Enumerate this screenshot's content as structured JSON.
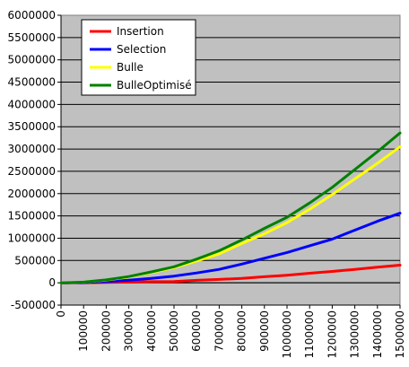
{
  "chart_data": {
    "type": "line",
    "x": [
      0,
      100000,
      200000,
      300000,
      400000,
      500000,
      600000,
      700000,
      800000,
      900000,
      1000000,
      1100000,
      1200000,
      1300000,
      1400000,
      1500000
    ],
    "x_tick_labels": [
      "0",
      "100000",
      "200000",
      "300000",
      "400000",
      "500000",
      "600000",
      "700000",
      "800000",
      "900000",
      "1000000",
      "1100000",
      "1200000",
      "1300000",
      "1400000",
      "1500000"
    ],
    "y_tick_labels": [
      "6000000",
      "5500000",
      "5000000",
      "4500000",
      "4000000",
      "3500000",
      "3000000",
      "2500000",
      "2000000",
      "1500000",
      "1000000",
      "500000",
      "0",
      "-500000"
    ],
    "ylim": [
      -500000,
      6000000
    ],
    "xlim": [
      0,
      1500000
    ],
    "grid": "horizontal",
    "legend_position": "top-left",
    "plot_background": "#c0c0c0",
    "series": [
      {
        "name": "Insertion",
        "color": "#ff0000",
        "values": [
          0,
          2000,
          8000,
          16000,
          25000,
          30000,
          55000,
          75000,
          100000,
          135000,
          170000,
          215000,
          255000,
          300000,
          350000,
          395000
        ]
      },
      {
        "name": "Selection",
        "color": "#0000ff",
        "values": [
          0,
          5000,
          25000,
          60000,
          100000,
          150000,
          220000,
          300000,
          420000,
          550000,
          680000,
          830000,
          980000,
          1180000,
          1380000,
          1560000
        ]
      },
      {
        "name": "Bulle",
        "color": "#ffff00",
        "values": [
          0,
          15000,
          60000,
          130000,
          230000,
          340000,
          490000,
          650000,
          880000,
          1100000,
          1350000,
          1650000,
          1980000,
          2330000,
          2680000,
          3050000
        ]
      },
      {
        "name": "BulleOptimisé",
        "color": "#008000",
        "values": [
          0,
          15000,
          65000,
          140000,
          245000,
          360000,
          530000,
          720000,
          960000,
          1220000,
          1470000,
          1790000,
          2140000,
          2540000,
          2940000,
          3360000
        ]
      }
    ]
  }
}
